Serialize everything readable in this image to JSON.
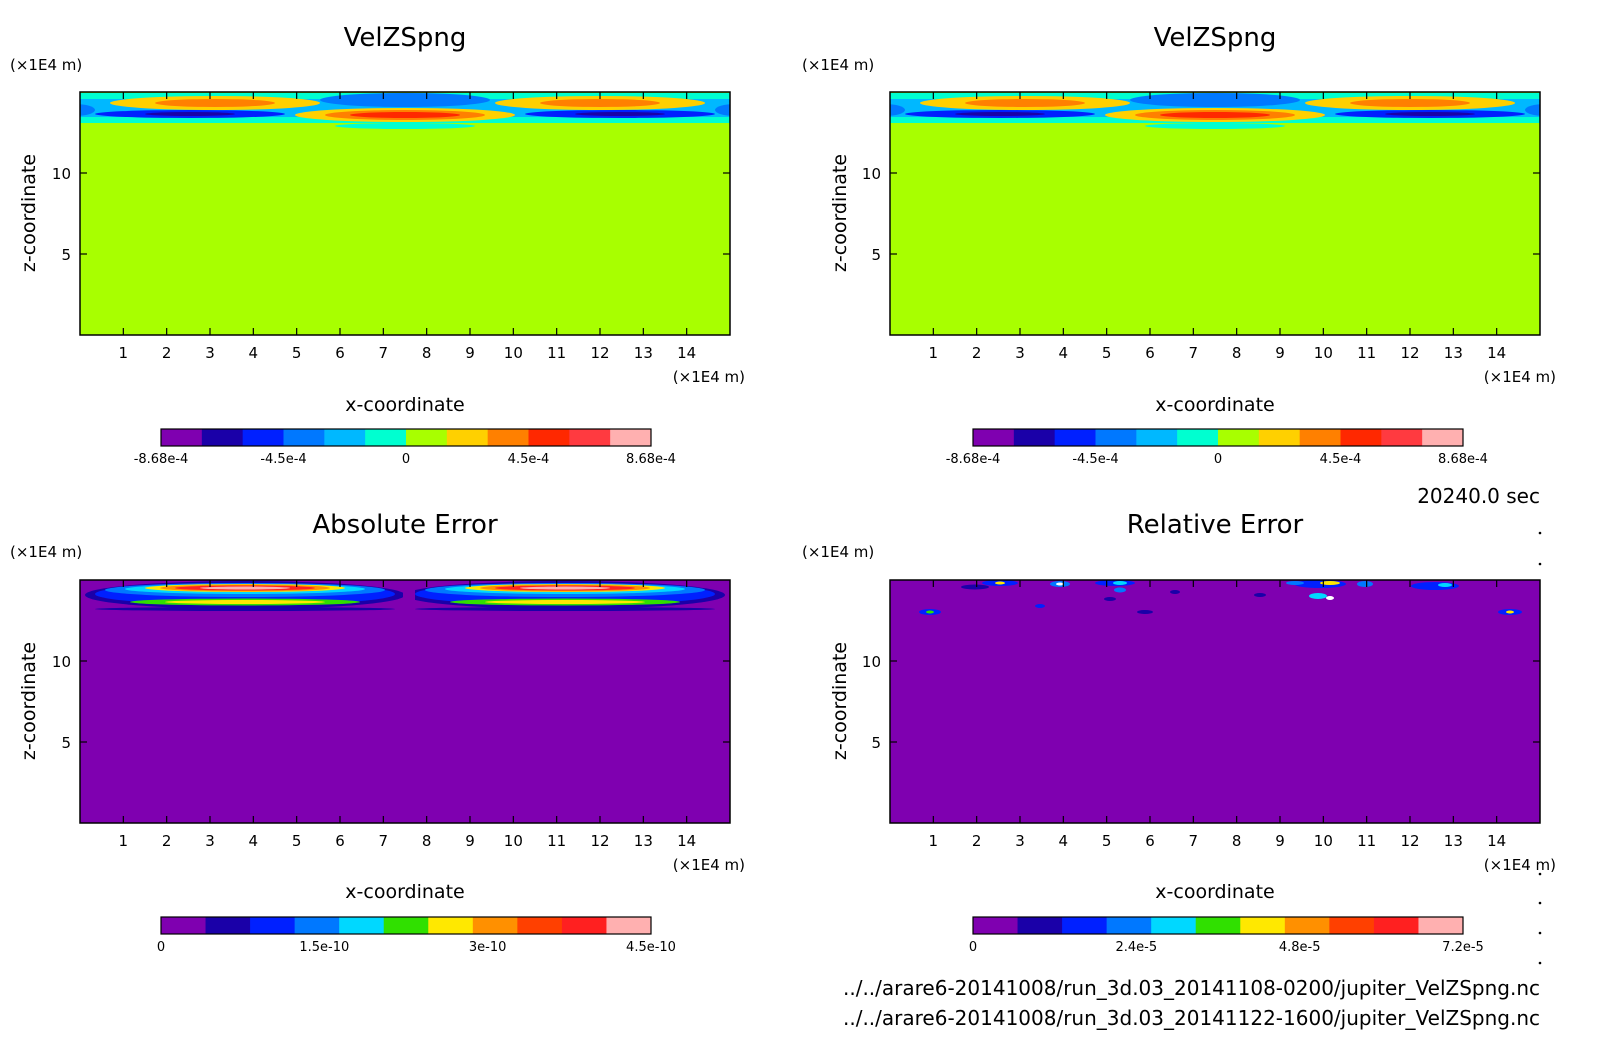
{
  "time_label": "20240.0 sec",
  "files": [
    "../../arare6-20141008/run_3d.03_20141108-0200/jupiter_VelZSpng.nc",
    "../../arare6-20141008/run_3d.03_20141122-1600/jupiter_VelZSpng.nc"
  ],
  "chart_data": [
    {
      "type": "heatmap",
      "title": "VelZSpng",
      "xlabel": "x-coordinate",
      "ylabel": "z-coordinate",
      "x_unit": "(×1E4 m)",
      "y_unit": "(×1E4 m)",
      "xlim": [
        0,
        15
      ],
      "ylim": [
        0,
        15
      ],
      "x_ticks": [
        "1",
        "2",
        "3",
        "4",
        "5",
        "6",
        "7",
        "8",
        "9",
        "10",
        "11",
        "12",
        "13",
        "14"
      ],
      "y_ticks": [
        "5",
        "10"
      ],
      "background": "#a8ff00",
      "colorbar": {
        "colors": [
          "#7f00b0",
          "#1a00a8",
          "#0020ff",
          "#0078ff",
          "#00b8ff",
          "#00ffd0",
          "#a8ff00",
          "#ffd000",
          "#ff8000",
          "#ff2800",
          "#ff3a40",
          "#ffb0b0"
        ],
        "labels": [
          "-8.68e-4",
          "-4.5e-4",
          "0",
          "4.5e-4",
          "8.68e-4"
        ]
      }
    },
    {
      "type": "heatmap",
      "title": "VelZSpng",
      "xlabel": "x-coordinate",
      "ylabel": "z-coordinate",
      "x_unit": "(×1E4 m)",
      "y_unit": "(×1E4 m)",
      "xlim": [
        0,
        15
      ],
      "ylim": [
        0,
        15
      ],
      "x_ticks": [
        "1",
        "2",
        "3",
        "4",
        "5",
        "6",
        "7",
        "8",
        "9",
        "10",
        "11",
        "12",
        "13",
        "14"
      ],
      "y_ticks": [
        "5",
        "10"
      ],
      "background": "#a8ff00",
      "colorbar": {
        "colors": [
          "#7f00b0",
          "#1a00a8",
          "#0020ff",
          "#0078ff",
          "#00b8ff",
          "#00ffd0",
          "#a8ff00",
          "#ffd000",
          "#ff8000",
          "#ff2800",
          "#ff3a40",
          "#ffb0b0"
        ],
        "labels": [
          "-8.68e-4",
          "-4.5e-4",
          "0",
          "4.5e-4",
          "8.68e-4"
        ]
      }
    },
    {
      "type": "heatmap",
      "title": "Absolute Error",
      "xlabel": "x-coordinate",
      "ylabel": "z-coordinate",
      "x_unit": "(×1E4 m)",
      "y_unit": "(×1E4 m)",
      "xlim": [
        0,
        15
      ],
      "ylim": [
        0,
        15
      ],
      "x_ticks": [
        "1",
        "2",
        "3",
        "4",
        "5",
        "6",
        "7",
        "8",
        "9",
        "10",
        "11",
        "12",
        "13",
        "14"
      ],
      "y_ticks": [
        "5",
        "10"
      ],
      "background": "#7f00b0",
      "colorbar": {
        "colors": [
          "#7f00b0",
          "#1a00a8",
          "#0020ff",
          "#0078ff",
          "#00d8ff",
          "#30e000",
          "#ffe800",
          "#ff9000",
          "#ff4000",
          "#ff2020",
          "#ffb0b0"
        ],
        "labels": [
          "0",
          "1.5e-10",
          "3e-10",
          "4.5e-10"
        ]
      }
    },
    {
      "type": "heatmap",
      "title": "Relative Error",
      "xlabel": "x-coordinate",
      "ylabel": "z-coordinate",
      "x_unit": "(×1E4 m)",
      "y_unit": "(×1E4 m)",
      "xlim": [
        0,
        15
      ],
      "ylim": [
        0,
        15
      ],
      "x_ticks": [
        "1",
        "2",
        "3",
        "4",
        "5",
        "6",
        "7",
        "8",
        "9",
        "10",
        "11",
        "12",
        "13",
        "14"
      ],
      "y_ticks": [
        "5",
        "10"
      ],
      "background": "#7f00b0",
      "colorbar": {
        "colors": [
          "#7f00b0",
          "#1a00a8",
          "#0020ff",
          "#0078ff",
          "#00d8ff",
          "#30e000",
          "#ffe800",
          "#ff9000",
          "#ff4000",
          "#ff2020",
          "#ffb0b0"
        ],
        "labels": [
          "0",
          "2.4e-5",
          "4.8e-5",
          "7.2e-5"
        ]
      }
    }
  ]
}
